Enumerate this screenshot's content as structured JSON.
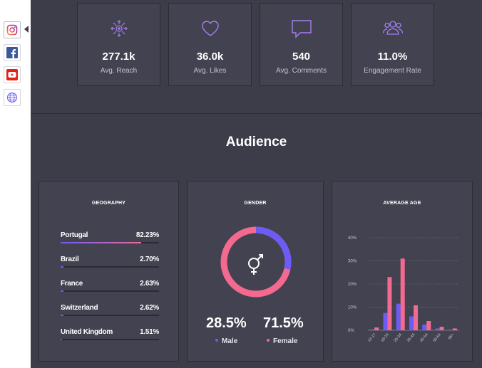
{
  "sidebar": {
    "items": [
      {
        "name": "instagram-icon",
        "color": "#c13584",
        "active": true
      },
      {
        "name": "facebook-icon",
        "color": "#3b5998",
        "active": false
      },
      {
        "name": "youtube-icon",
        "color": "#e62117",
        "active": false
      },
      {
        "name": "globe-icon",
        "color": "#7b6ff0",
        "active": false
      }
    ]
  },
  "stats": [
    {
      "icon": "reach-icon",
      "value": "277.1k",
      "label": "Avg. Reach"
    },
    {
      "icon": "heart-icon",
      "value": "36.0k",
      "label": "Avg. Likes"
    },
    {
      "icon": "comment-icon",
      "value": "540",
      "label": "Avg. Comments"
    },
    {
      "icon": "users-icon",
      "value": "11.0%",
      "label": "Engagement Rate"
    }
  ],
  "audience": {
    "title": "Audience",
    "geography": {
      "title": "GEOGRAPHY",
      "rows": [
        {
          "country": "Portugal",
          "pct": "82.23%",
          "value": 82.23
        },
        {
          "country": "Brazil",
          "pct": "2.70%",
          "value": 2.7
        },
        {
          "country": "France",
          "pct": "2.63%",
          "value": 2.63
        },
        {
          "country": "Switzerland",
          "pct": "2.62%",
          "value": 2.62
        },
        {
          "country": "United Kingdom",
          "pct": "1.51%",
          "value": 1.51
        }
      ]
    },
    "gender": {
      "title": "GENDER",
      "male_pct": "28.5%",
      "female_pct": "71.5%",
      "male_label": "Male",
      "female_label": "Female",
      "male_value": 28.5,
      "female_value": 71.5,
      "male_color": "#6c5cf5",
      "female_color": "#f4698f"
    },
    "age": {
      "title": "AVERAGE AGE"
    }
  },
  "chart_data": {
    "type": "bar",
    "title": "AVERAGE AGE",
    "categories": [
      "13-17",
      "18-24",
      "25-34",
      "35-44",
      "45-54",
      "55-64",
      "65+"
    ],
    "series": [
      {
        "name": "Male",
        "color": "#6c5cf5",
        "values": [
          0.4,
          7.5,
          11.5,
          6.0,
          2.5,
          0.8,
          0.3
        ]
      },
      {
        "name": "Female",
        "color": "#f4698f",
        "values": [
          1.2,
          23.0,
          31.0,
          10.8,
          4.0,
          1.5,
          0.8
        ]
      }
    ],
    "y_ticks": [
      "0%",
      "10%",
      "20%",
      "30%",
      "40%"
    ],
    "ylim": [
      0,
      40
    ],
    "grid": true
  }
}
